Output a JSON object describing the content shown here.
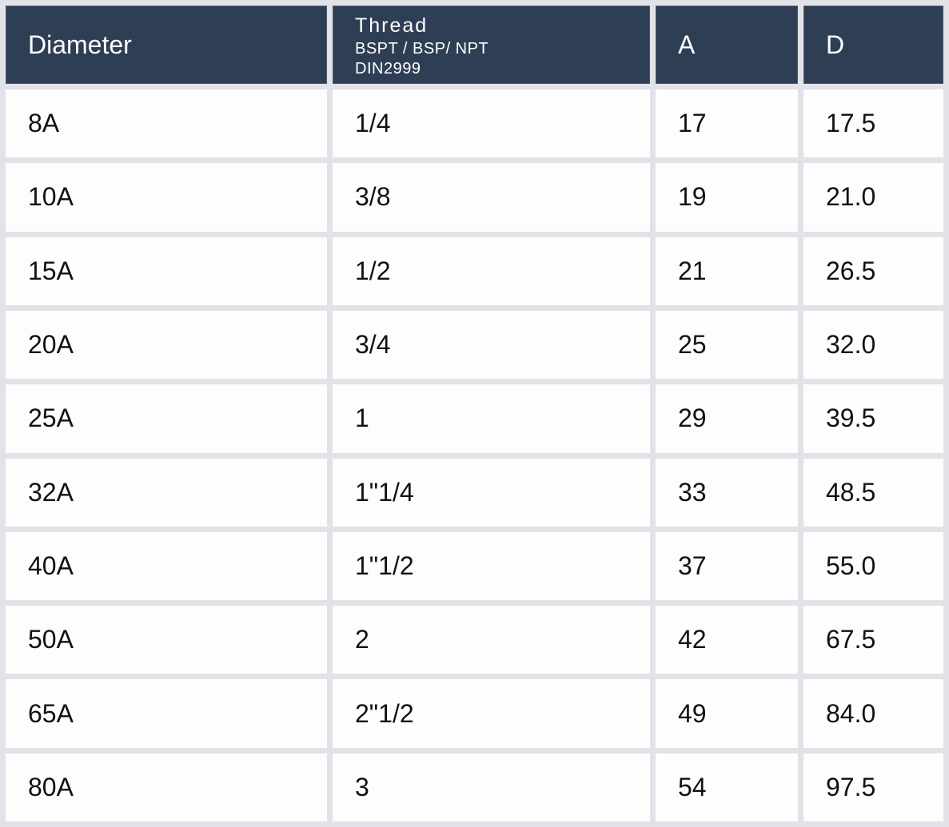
{
  "chart_data": {
    "type": "table",
    "header": {
      "diameter": "Diameter",
      "thread_title": "Thread",
      "thread_sub1": "BSPT / BSP/ NPT",
      "thread_sub2": "DIN2999",
      "a": "A",
      "d": "D"
    },
    "rows": [
      {
        "diameter": "8A",
        "thread": "1/4",
        "a": "17",
        "d": "17.5"
      },
      {
        "diameter": "10A",
        "thread": "3/8",
        "a": "19",
        "d": "21.0"
      },
      {
        "diameter": "15A",
        "thread": "1/2",
        "a": "21",
        "d": "26.5"
      },
      {
        "diameter": "20A",
        "thread": "3/4",
        "a": "25",
        "d": "32.0"
      },
      {
        "diameter": "25A",
        "thread": "1",
        "a": "29",
        "d": "39.5"
      },
      {
        "diameter": "32A",
        "thread": "1\"1/4",
        "a": "33",
        "d": "48.5"
      },
      {
        "diameter": "40A",
        "thread": "1\"1/2",
        "a": "37",
        "d": "55.0"
      },
      {
        "diameter": "50A",
        "thread": "2",
        "a": "42",
        "d": "67.5"
      },
      {
        "diameter": "65A",
        "thread": "2\"1/2",
        "a": "49",
        "d": "84.0"
      },
      {
        "diameter": "80A",
        "thread": "3",
        "a": "54",
        "d": "97.5"
      }
    ]
  },
  "colors": {
    "header_bg": "#2e3f55",
    "page_bg": "#e2e3e8",
    "cell_bg": "#fdfdfe",
    "header_text": "#ffffff",
    "body_text": "#111111"
  }
}
